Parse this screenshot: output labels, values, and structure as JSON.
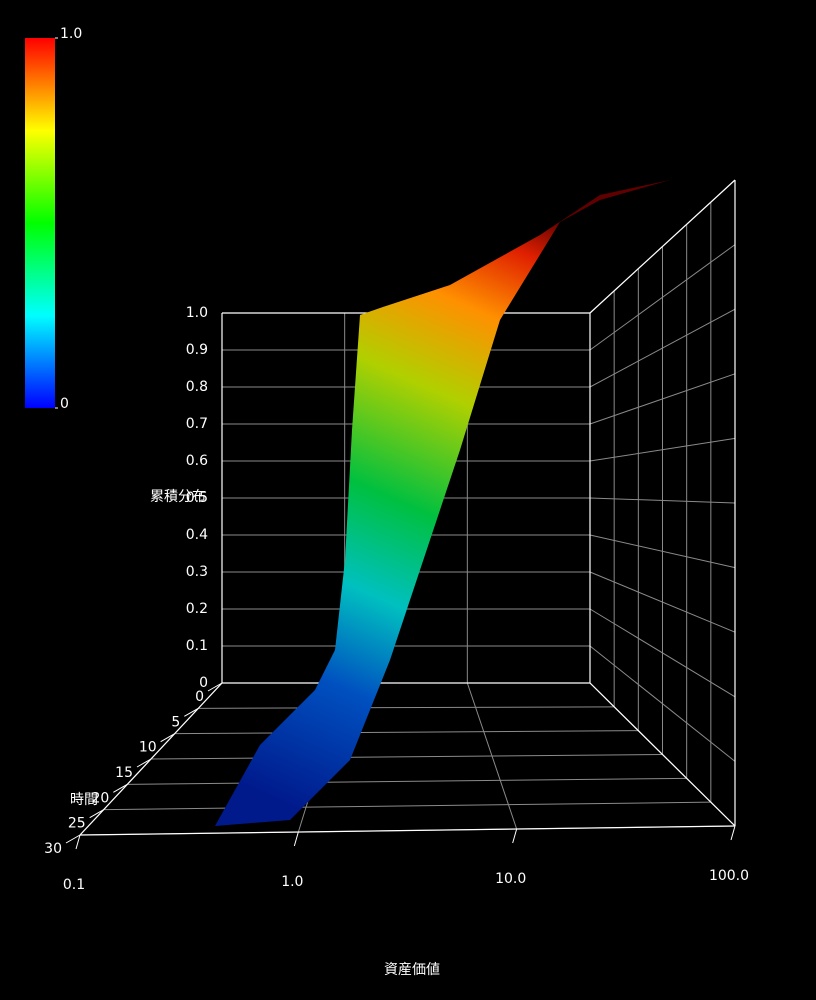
{
  "chart_data": {
    "type": "surface3d",
    "xlabel": "資産価値",
    "ylabel": "時間",
    "zlabel": "累積分布",
    "xscale": "log",
    "xlim": [
      0.1,
      100
    ],
    "xticks": [
      0.1,
      {
        "value": 1,
        "label": "1.0"
      },
      {
        "value": 10,
        "label": "10.0"
      },
      {
        "value": 100,
        "label": "100.0"
      }
    ],
    "ylim": [
      0,
      30
    ],
    "yticks": [
      0,
      5,
      10,
      15,
      20,
      25,
      30
    ],
    "zlim": [
      0,
      1
    ],
    "zticks": [
      0,
      0.1,
      0.2,
      0.3,
      0.4,
      0.5,
      0.6,
      0.7,
      0.8,
      0.9,
      {
        "value": 1,
        "label": "1.0"
      }
    ],
    "grid": true,
    "colorbar": {
      "lim": [
        0,
        1
      ],
      "ticks": [
        0,
        {
          "value": 1,
          "label": "1.0"
        }
      ]
    }
  }
}
